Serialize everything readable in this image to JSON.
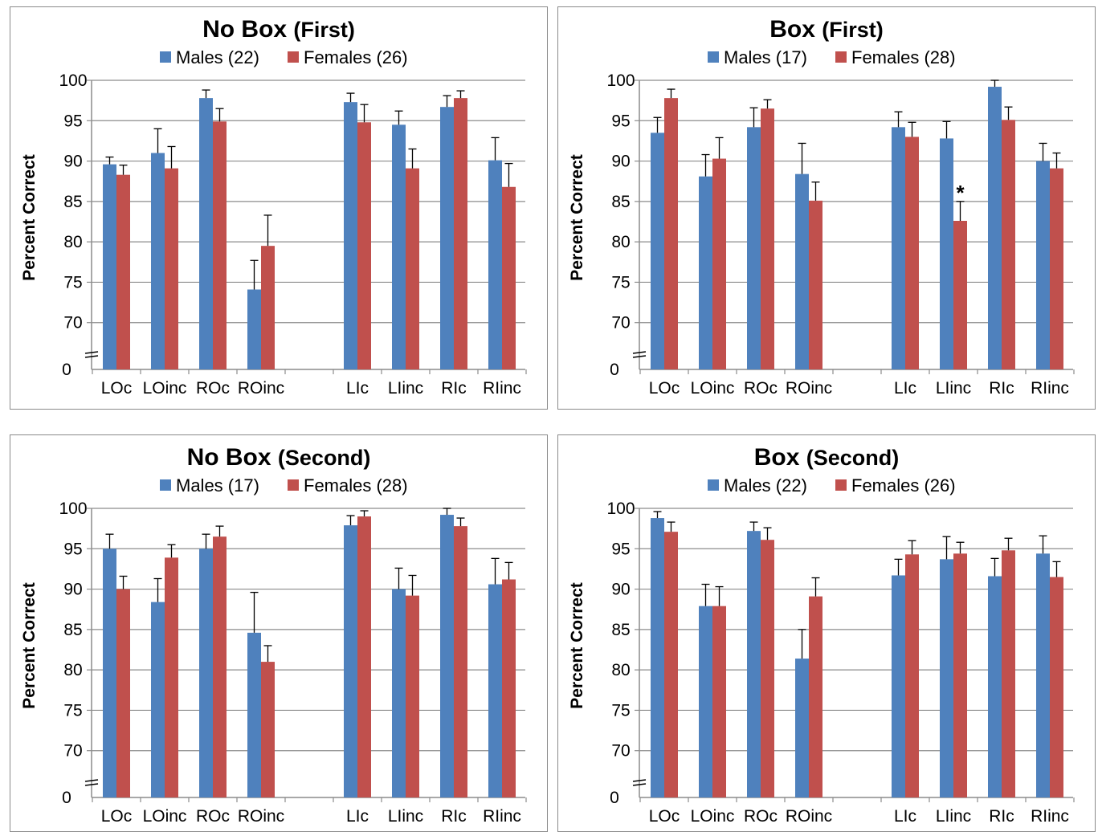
{
  "chart_data": [
    {
      "type": "bar",
      "title_main": "No Box",
      "title_paren": "(First)",
      "ylabel": "Percent Correct",
      "ylim": [
        65,
        100
      ],
      "yticks": [
        "100",
        "95",
        "90",
        "85",
        "80",
        "75",
        "70",
        "0"
      ],
      "axis_break": true,
      "grid": true,
      "legend_position": "top",
      "categories": [
        "LOc",
        "LOinc",
        "ROc",
        "ROinc",
        "LIc",
        "LIinc",
        "RIc",
        "RIinc"
      ],
      "series": [
        {
          "name": "Males (22)",
          "color": "#4f81bd",
          "values": [
            89.6,
            91.0,
            97.8,
            74.1,
            97.3,
            94.5,
            96.7,
            90.1
          ],
          "errors": [
            0.9,
            3.0,
            1.0,
            3.6,
            1.1,
            1.7,
            1.4,
            2.8
          ]
        },
        {
          "name": "Females (26)",
          "color": "#c0504d",
          "values": [
            88.3,
            89.1,
            94.9,
            79.5,
            94.8,
            89.1,
            97.8,
            86.8
          ],
          "errors": [
            1.2,
            2.7,
            1.6,
            3.8,
            2.2,
            2.4,
            0.9,
            2.9
          ]
        }
      ],
      "annotations": []
    },
    {
      "type": "bar",
      "title_main": "Box",
      "title_paren": "(First)",
      "ylabel": "Percent Correct",
      "ylim": [
        65,
        100
      ],
      "yticks": [
        "100",
        "95",
        "90",
        "85",
        "80",
        "75",
        "70",
        "0"
      ],
      "axis_break": true,
      "grid": true,
      "legend_position": "top",
      "categories": [
        "LOc",
        "LOinc",
        "ROc",
        "ROinc",
        "LIc",
        "LIinc",
        "RIc",
        "RIinc"
      ],
      "series": [
        {
          "name": "Males (17)",
          "color": "#4f81bd",
          "values": [
            93.5,
            88.1,
            94.2,
            88.4,
            94.2,
            92.8,
            99.2,
            90.0
          ],
          "errors": [
            1.9,
            2.7,
            2.4,
            3.8,
            1.9,
            2.1,
            0.8,
            2.2
          ]
        },
        {
          "name": "Females (28)",
          "color": "#c0504d",
          "values": [
            97.8,
            90.3,
            96.5,
            85.1,
            93.0,
            82.6,
            95.1,
            89.1
          ],
          "errors": [
            1.1,
            2.6,
            1.1,
            2.3,
            1.8,
            2.4,
            1.6,
            1.9
          ]
        }
      ],
      "annotations": [
        {
          "text": "*",
          "category": "LIinc",
          "series": 1
        }
      ]
    },
    {
      "type": "bar",
      "title_main": "No Box",
      "title_paren": "(Second)",
      "ylabel": "Percent Correct",
      "ylim": [
        65,
        100
      ],
      "yticks": [
        "100",
        "95",
        "90",
        "85",
        "80",
        "75",
        "70",
        "0"
      ],
      "axis_break": true,
      "grid": true,
      "legend_position": "top",
      "categories": [
        "LOc",
        "LOinc",
        "ROc",
        "ROinc",
        "LIc",
        "LIinc",
        "RIc",
        "RIinc"
      ],
      "series": [
        {
          "name": "Males (17)",
          "color": "#4f81bd",
          "values": [
            95.0,
            88.4,
            95.0,
            84.6,
            97.9,
            90.0,
            99.2,
            90.6
          ],
          "errors": [
            1.8,
            2.9,
            1.8,
            5.0,
            1.2,
            2.6,
            0.8,
            3.2
          ]
        },
        {
          "name": "Females (28)",
          "color": "#c0504d",
          "values": [
            90.0,
            93.9,
            96.5,
            81.0,
            99.0,
            89.2,
            97.8,
            91.2
          ],
          "errors": [
            1.6,
            1.6,
            1.3,
            2.0,
            0.7,
            2.5,
            1.0,
            2.1
          ]
        }
      ],
      "annotations": []
    },
    {
      "type": "bar",
      "title_main": "Box",
      "title_paren": "(Second)",
      "ylabel": "Percent Correct",
      "ylim": [
        65,
        100
      ],
      "yticks": [
        "100",
        "95",
        "90",
        "85",
        "80",
        "75",
        "70",
        "0"
      ],
      "axis_break": true,
      "grid": true,
      "legend_position": "top",
      "categories": [
        "LOc",
        "LOinc",
        "ROc",
        "ROinc",
        "LIc",
        "LIinc",
        "RIc",
        "RIinc"
      ],
      "series": [
        {
          "name": "Males (22)",
          "color": "#4f81bd",
          "values": [
            98.8,
            87.9,
            97.2,
            81.4,
            91.7,
            93.7,
            91.6,
            94.4
          ],
          "errors": [
            0.8,
            2.7,
            1.1,
            3.6,
            2.0,
            2.8,
            2.2,
            2.2
          ]
        },
        {
          "name": "Females (26)",
          "color": "#c0504d",
          "values": [
            97.1,
            87.9,
            96.1,
            89.1,
            94.3,
            94.4,
            94.8,
            91.5
          ],
          "errors": [
            1.2,
            2.4,
            1.5,
            2.3,
            1.7,
            1.4,
            1.5,
            1.9
          ]
        }
      ],
      "annotations": []
    }
  ]
}
